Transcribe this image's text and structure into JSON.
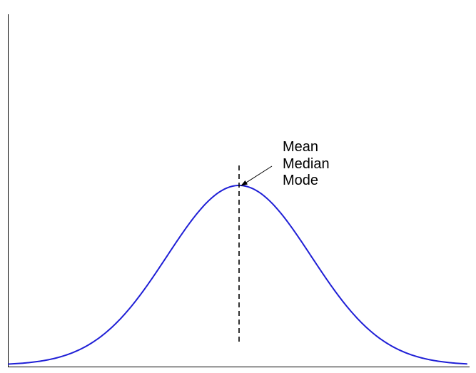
{
  "diagram": {
    "type": "normal-distribution",
    "curve_color": "#1f1fd6",
    "axis_color": "#000000",
    "dashed_line": "mean-median-mode",
    "annotation_lines": [
      "Mean",
      "Median",
      "Mode"
    ]
  }
}
